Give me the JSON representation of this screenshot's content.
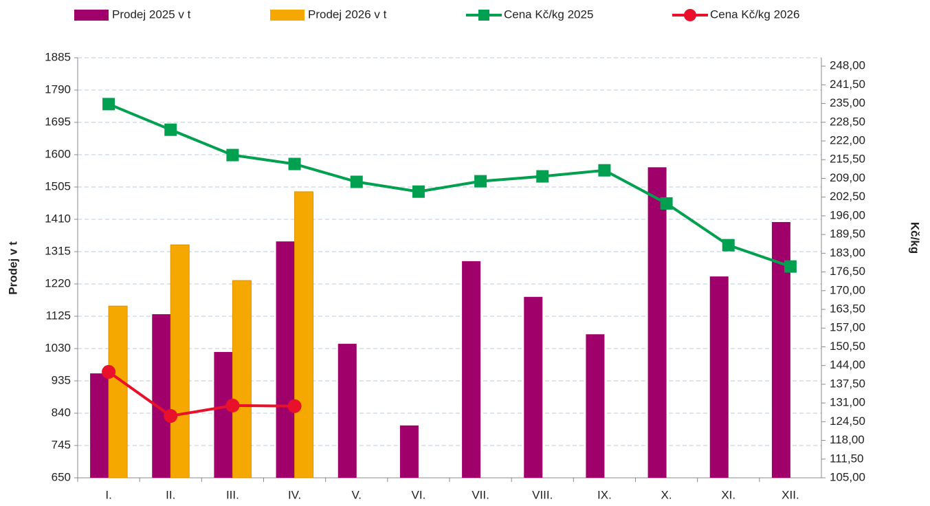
{
  "chart_data": {
    "type": "bar-line",
    "categories": [
      "I.",
      "II.",
      "III.",
      "IV.",
      "V.",
      "VI.",
      "VII.",
      "VIII.",
      "IX.",
      "X.",
      "XI.",
      "XII."
    ],
    "ylabel": "Prodej v t",
    "y2label": "Kč/kg",
    "ylim": [
      650,
      1885
    ],
    "yticks": [
      650,
      745,
      840,
      935,
      1030,
      1125,
      1220,
      1315,
      1410,
      1505,
      1600,
      1695,
      1790,
      1885
    ],
    "y2lim": [
      105,
      250.9
    ],
    "y2ticks": [
      {
        "value": 105,
        "label": "105,00"
      },
      {
        "value": 111.5,
        "label": "111,50"
      },
      {
        "value": 118,
        "label": "118,00"
      },
      {
        "value": 124.5,
        "label": "124,50"
      },
      {
        "value": 131,
        "label": "131,00"
      },
      {
        "value": 137.5,
        "label": "137,50"
      },
      {
        "value": 144,
        "label": "144,00"
      },
      {
        "value": 150.5,
        "label": "150,50"
      },
      {
        "value": 157,
        "label": "157,00"
      },
      {
        "value": 163.5,
        "label": "163,50"
      },
      {
        "value": 170,
        "label": "170,00"
      },
      {
        "value": 176.5,
        "label": "176,50"
      },
      {
        "value": 183,
        "label": "183,00"
      },
      {
        "value": 189.5,
        "label": "189,50"
      },
      {
        "value": 196,
        "label": "196,00"
      },
      {
        "value": 202.5,
        "label": "202,50"
      },
      {
        "value": 209,
        "label": "209,00"
      },
      {
        "value": 215.5,
        "label": "215,50"
      },
      {
        "value": 222,
        "label": "222,00"
      },
      {
        "value": 228.5,
        "label": "228,50"
      },
      {
        "value": 235,
        "label": "235,00"
      },
      {
        "value": 241.5,
        "label": "241,50"
      },
      {
        "value": 248,
        "label": "248,00"
      }
    ],
    "grid": true,
    "legend": "top",
    "series": [
      {
        "name": "Prodej 2025 v t",
        "type": "bar",
        "color": "#a0006a",
        "values": [
          957,
          1131,
          1020,
          1345,
          1044,
          804,
          1287,
          1182,
          1072,
          1563,
          1242,
          1402
        ]
      },
      {
        "name": "Prodej 2026 v t",
        "type": "bar",
        "color": "#f5a800",
        "values": [
          1155,
          1335,
          1230,
          1491,
          null,
          null,
          null,
          null,
          null,
          null,
          null,
          null
        ]
      },
      {
        "name": "Cena Kč/kg 2025",
        "type": "line",
        "marker": "square",
        "axis": "y2",
        "color": "#00a050",
        "values": [
          234.8,
          225.9,
          217.1,
          214.0,
          207.8,
          204.4,
          208.0,
          209.7,
          211.8,
          200.3,
          185.8,
          178.4
        ]
      },
      {
        "name": "Cena Kč/kg 2026",
        "type": "line",
        "marker": "circle",
        "axis": "y2",
        "color": "#e8102a",
        "values": [
          141.8,
          126.5,
          130.1,
          129.9,
          null,
          null,
          null,
          null,
          null,
          null,
          null,
          null
        ]
      }
    ]
  }
}
